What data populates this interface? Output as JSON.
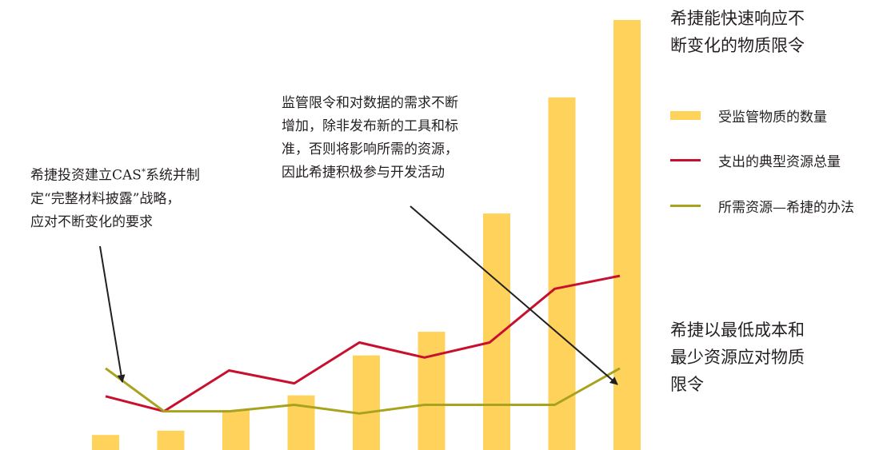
{
  "chart_data": {
    "type": "bar",
    "categories": [
      "",
      "",
      "",
      "",
      "",
      "",
      "",
      "",
      ""
    ],
    "ylim": [
      0,
      100
    ],
    "series": [
      {
        "name": "受监管物质的数量",
        "kind": "bar",
        "color": "#ffd35b",
        "values": [
          3.5,
          4.5,
          9.3,
          12.7,
          22,
          27.5,
          55,
          82,
          100
        ]
      },
      {
        "name": "支出的典型资源总量",
        "kind": "line",
        "color": "#c8102e",
        "values": [
          12.5,
          9,
          18.5,
          15.5,
          25,
          21.5,
          25,
          37.5,
          40.5
        ]
      },
      {
        "name": "所需资源—希捷的办法",
        "kind": "line",
        "color": "#a8a31e",
        "values": [
          19,
          9,
          9,
          10.5,
          8.5,
          10.5,
          10.5,
          10.5,
          19
        ]
      }
    ],
    "start_point": {
      "red": 12.5,
      "green": 19
    }
  },
  "annotations": {
    "left": [
      "希捷投资建立CAS",
      "系统并制",
      "定“完整材料披露”战略，",
      "应对不断变化的要求"
    ],
    "left_sup": "*",
    "middle": [
      "监管限令和对数据的需求不断",
      "增加，除非发布新的工具和标",
      "准，否则将影响所需的资源，",
      "因此希捷积极参与开发活动"
    ],
    "top_right": [
      "希捷能快速响应不",
      "断变化的物质限令"
    ],
    "bottom_right": [
      "希捷以最低成本和",
      "最少资源应对物质",
      "限令"
    ]
  },
  "legend": [
    {
      "label": "受监管物质的数量",
      "color": "#ffd35b",
      "shape": "bar"
    },
    {
      "label": "支出的典型资源总量",
      "color": "#c8102e",
      "shape": "line"
    },
    {
      "label": "所需资源—希捷的办法",
      "color": "#a8a31e",
      "shape": "line"
    }
  ]
}
